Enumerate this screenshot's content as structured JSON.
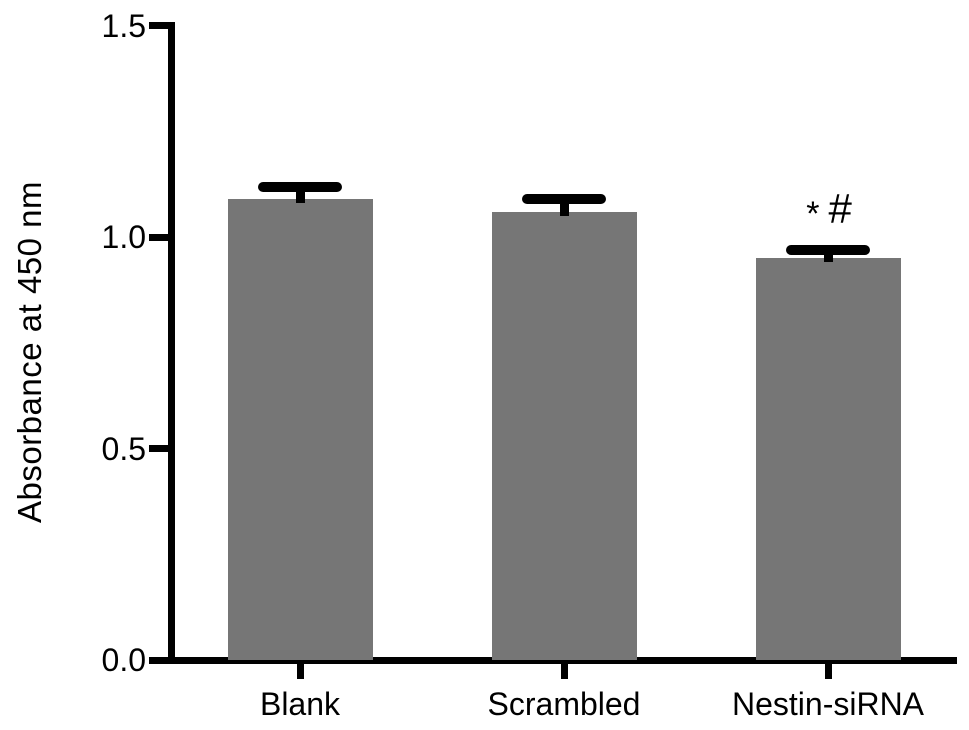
{
  "chart_data": {
    "type": "bar",
    "title": "",
    "xlabel": "",
    "ylabel": "Absorbance at 450 nm",
    "categories": [
      "Blank",
      "Scrambled",
      "Nestin-siRNA"
    ],
    "values": [
      1.09,
      1.06,
      0.95
    ],
    "errors": [
      0.03,
      0.03,
      0.02
    ],
    "error_bars": "upper only, capped",
    "ylim": [
      0.0,
      1.5
    ],
    "yticks": [
      0.0,
      0.5,
      1.0,
      1.5
    ],
    "ytick_labels": [
      "0.0",
      "0.5",
      "1.0",
      "1.5"
    ],
    "bar_color": "#767676",
    "axis_color": "#000000",
    "grid": false,
    "legend": null,
    "annotation": {
      "target_category": "Nestin-siRNA",
      "text": "* #",
      "star": "*",
      "hash": "#"
    }
  }
}
